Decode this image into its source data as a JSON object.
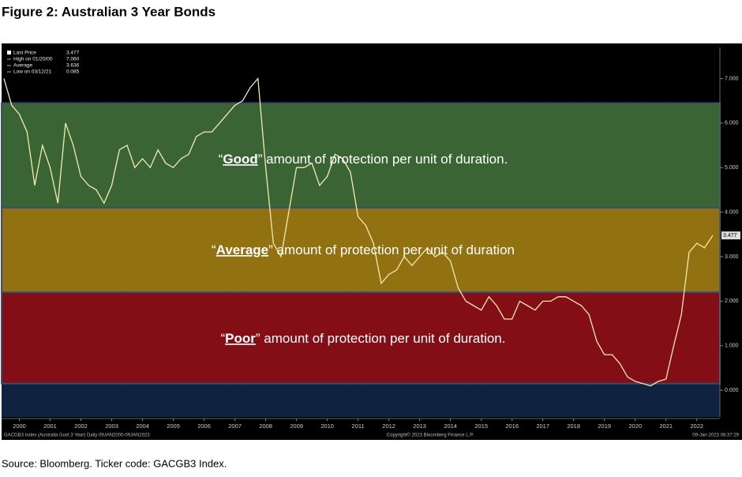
{
  "title": "Figure 2: Australian 3 Year Bonds",
  "source": "Source: Bloomberg. Ticker code: GACGB3 Index.",
  "chart_data": {
    "type": "line",
    "xlim": [
      2000,
      2023.25
    ],
    "ylim": [
      -0.6,
      7.7
    ],
    "xticks": [
      {
        "value": 2000.5,
        "label": "2000"
      },
      {
        "value": 2001.5,
        "label": "2001"
      },
      {
        "value": 2002.5,
        "label": "2002"
      },
      {
        "value": 2003.5,
        "label": "2003"
      },
      {
        "value": 2004.5,
        "label": "2004"
      },
      {
        "value": 2005.5,
        "label": "2005"
      },
      {
        "value": 2006.5,
        "label": "2006"
      },
      {
        "value": 2007.5,
        "label": "2007"
      },
      {
        "value": 2008.5,
        "label": "2008"
      },
      {
        "value": 2009.5,
        "label": "2009"
      },
      {
        "value": 2010.5,
        "label": "2010"
      },
      {
        "value": 2011.5,
        "label": "2011"
      },
      {
        "value": 2012.5,
        "label": "2012"
      },
      {
        "value": 2013.5,
        "label": "2013"
      },
      {
        "value": 2014.5,
        "label": "2014"
      },
      {
        "value": 2015.5,
        "label": "2015"
      },
      {
        "value": 2016.5,
        "label": "2016"
      },
      {
        "value": 2017.5,
        "label": "2017"
      },
      {
        "value": 2018.5,
        "label": "2018"
      },
      {
        "value": 2019.5,
        "label": "2019"
      },
      {
        "value": 2020.5,
        "label": "2020"
      },
      {
        "value": 2021.5,
        "label": "2021"
      },
      {
        "value": 2022.5,
        "label": "2022"
      }
    ],
    "yticks": [
      {
        "value": 0,
        "label": "0.000"
      },
      {
        "value": 1,
        "label": "1.000"
      },
      {
        "value": 2,
        "label": "2.000"
      },
      {
        "value": 3,
        "label": "3.000"
      },
      {
        "value": 4,
        "label": "4.000"
      },
      {
        "value": 5,
        "label": "5.000"
      },
      {
        "value": 6,
        "label": "6.000"
      },
      {
        "value": 7,
        "label": "7.000"
      }
    ],
    "series": [
      {
        "name": "Last Price",
        "color": "#f3eab0",
        "x": [
          2000,
          2000.25,
          2000.5,
          2000.75,
          2001,
          2001.25,
          2001.5,
          2001.75,
          2002,
          2002.25,
          2002.5,
          2002.75,
          2003,
          2003.25,
          2003.5,
          2003.75,
          2004,
          2004.25,
          2004.5,
          2004.75,
          2005,
          2005.25,
          2005.5,
          2005.75,
          2006,
          2006.25,
          2006.5,
          2006.75,
          2007,
          2007.25,
          2007.5,
          2007.75,
          2008,
          2008.25,
          2008.5,
          2008.75,
          2009,
          2009.25,
          2009.5,
          2009.75,
          2010,
          2010.25,
          2010.5,
          2010.75,
          2011,
          2011.25,
          2011.5,
          2011.75,
          2012,
          2012.25,
          2012.5,
          2012.75,
          2013,
          2013.25,
          2013.5,
          2013.75,
          2014,
          2014.25,
          2014.5,
          2014.75,
          2015,
          2015.25,
          2015.5,
          2015.75,
          2016,
          2016.25,
          2016.5,
          2016.75,
          2017,
          2017.25,
          2017.5,
          2017.75,
          2018,
          2018.25,
          2018.5,
          2018.75,
          2019,
          2019.25,
          2019.5,
          2019.75,
          2020,
          2020.25,
          2020.5,
          2020.75,
          2021,
          2021.25,
          2021.5,
          2021.75,
          2022,
          2022.25,
          2022.5,
          2022.75,
          2023.02
        ],
        "values": [
          7.0,
          6.4,
          6.2,
          5.8,
          4.6,
          5.5,
          5.0,
          4.2,
          6.0,
          5.5,
          4.8,
          4.6,
          4.5,
          4.2,
          4.6,
          5.4,
          5.5,
          5.0,
          5.2,
          5.0,
          5.4,
          5.1,
          5.0,
          5.2,
          5.3,
          5.7,
          5.8,
          5.8,
          6.0,
          6.2,
          6.4,
          6.5,
          6.8,
          7.0,
          5.0,
          3.3,
          3.0,
          4.0,
          5.0,
          5.0,
          5.1,
          4.6,
          4.8,
          5.3,
          5.2,
          4.9,
          3.9,
          3.7,
          3.3,
          2.4,
          2.6,
          2.7,
          3.0,
          2.8,
          3.0,
          3.2,
          3.0,
          3.1,
          2.9,
          2.3,
          2.0,
          1.9,
          1.8,
          2.1,
          1.9,
          1.6,
          1.6,
          2.0,
          1.9,
          1.8,
          2.0,
          2.0,
          2.1,
          2.1,
          2.0,
          1.9,
          1.7,
          1.1,
          0.8,
          0.8,
          0.6,
          0.3,
          0.2,
          0.15,
          0.1,
          0.2,
          0.25,
          1.0,
          1.7,
          3.1,
          3.3,
          3.2,
          3.477
        ]
      }
    ],
    "bands": [
      {
        "from": 4.1,
        "to": 6.45,
        "color": "#3e6a37",
        "prefix": "“",
        "word": "Good",
        "suffix": "” amount of protection per unit of duration."
      },
      {
        "from": 2.2,
        "to": 4.1,
        "color": "#9a7812",
        "prefix": "“",
        "word": "Average",
        "suffix": "” amount of protection per unit of duration"
      },
      {
        "from": 0.15,
        "to": 2.2,
        "color": "#8c0f18",
        "prefix": "“",
        "word": "Poor",
        "suffix": "” amount of protection per unit of duration."
      }
    ],
    "legend": [
      {
        "name": "Last Price",
        "value": 3.477
      },
      {
        "name": "High on 01/20/00",
        "value": 7.06,
        "value_label": "7.060"
      },
      {
        "name": "Average",
        "value": 3.636
      },
      {
        "name": "Low on 03/12/21",
        "value": 0.085
      }
    ],
    "footer_left": "GACGB3 Index (Australia Govt 3 Year) Daily 09JAN2000-09JAN2023",
    "footer_center": "Copyright© 2023 Bloomberg Finance L.P.",
    "footer_right": "09-Jan-2023 08:37:29"
  }
}
